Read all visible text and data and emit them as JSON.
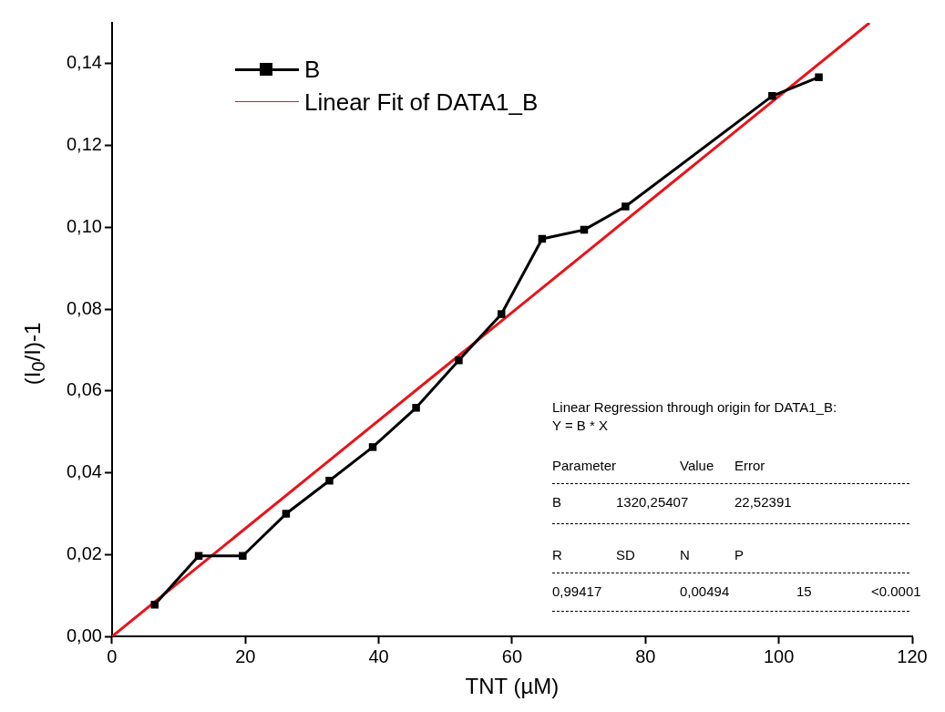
{
  "chart_data": {
    "type": "line",
    "xlabel": "TNT (µM)",
    "ylabel": "(I$_{0}$/I)-1",
    "legend": "top left",
    "xlim": [
      0,
      120
    ],
    "xticks": [
      0,
      20,
      40,
      60,
      80,
      100,
      120
    ],
    "ylim": [
      0,
      0.15
    ],
    "yticks": [
      {
        "value": 0,
        "label": "0,00"
      },
      {
        "value": 0.02,
        "label": "0,02"
      },
      {
        "value": 0.04,
        "label": "0,04"
      },
      {
        "value": 0.06,
        "label": "0,06"
      },
      {
        "value": 0.08,
        "label": "0,08"
      },
      {
        "value": 0.1,
        "label": "0,10"
      },
      {
        "value": 0.12,
        "label": "0,12"
      },
      {
        "value": 0.14,
        "label": "0,14"
      }
    ],
    "series": [
      {
        "name": "B",
        "color": "#000000",
        "marker": "square",
        "line_style": "solid",
        "x": [
          6.4,
          13.0,
          19.6,
          26.1,
          32.6,
          39.1,
          45.6,
          52.0,
          58.4,
          64.5,
          70.8,
          77.0,
          99.0,
          106.0
        ],
        "values": [
          0.0078,
          0.0197,
          0.0197,
          0.03,
          0.0381,
          0.0463,
          0.0559,
          0.0675,
          0.0788,
          0.0972,
          0.0994,
          0.1051,
          0.1321,
          0.1367
        ]
      },
      {
        "name": "Linear Fit of DATA1_B",
        "color": "#e8141b",
        "marker": "none",
        "line_style": "solid",
        "x": [
          0,
          113.6
        ],
        "values": [
          0,
          0.15
        ]
      }
    ],
    "annotations": [
      "Linear Regression through origin for DATA1_B:",
      "Y = B * X",
      "Parameter",
      "Value",
      "Error",
      "B",
      "1320,25407",
      "22,52391",
      "R",
      "SD",
      "N",
      "P",
      "0,99417",
      "0,00494",
      "15",
      "<0.0001"
    ]
  }
}
